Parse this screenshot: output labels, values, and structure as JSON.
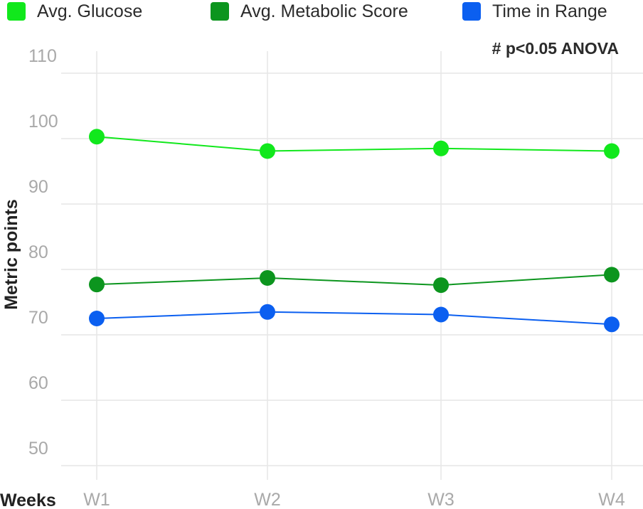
{
  "chart_data": {
    "type": "line",
    "categories": [
      "W1",
      "W2",
      "W3",
      "W4"
    ],
    "series": [
      {
        "name": "Avg. Glucose",
        "color": "#11e81c",
        "values": [
          100.3,
          98.1,
          98.5,
          98.1
        ]
      },
      {
        "name": "Avg. Metabolic Score",
        "color": "#0c951e",
        "values": [
          77.7,
          78.7,
          77.6,
          79.2
        ]
      },
      {
        "name": "Time in Range",
        "color": "#0b5ff0",
        "values": [
          72.5,
          73.5,
          73.1,
          71.6
        ]
      }
    ],
    "xlabel": "Weeks",
    "ylabel": "Metric points",
    "ylim": [
      50,
      110
    ],
    "yticks": [
      50,
      60,
      70,
      80,
      90,
      100,
      110
    ],
    "annotation": "# p<0.05 ANOVA",
    "grid": true,
    "legend_position": "top"
  }
}
